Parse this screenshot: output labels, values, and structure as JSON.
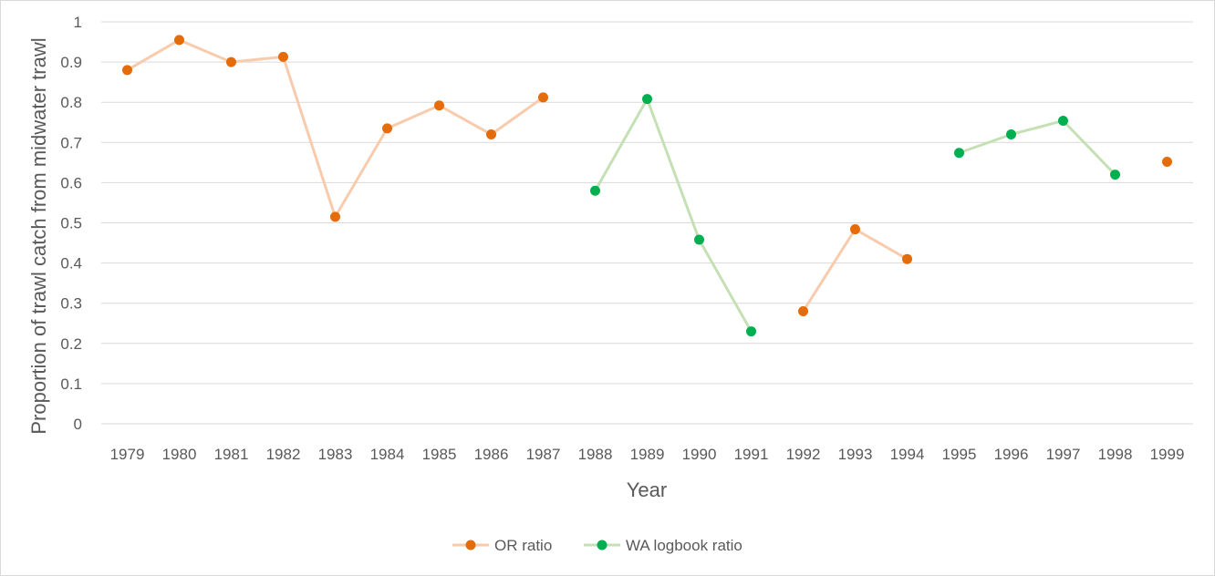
{
  "chart_data": {
    "type": "line",
    "title": "",
    "xlabel": "Year",
    "ylabel": "Proportion of trawl catch from midwater trawl",
    "ylim": [
      0,
      1
    ],
    "y_ticks": [
      "0",
      "0.1",
      "0.2",
      "0.3",
      "0.4",
      "0.5",
      "0.6",
      "0.7",
      "0.8",
      "0.9",
      "1"
    ],
    "categories": [
      "1979",
      "1980",
      "1981",
      "1982",
      "1983",
      "1984",
      "1985",
      "1986",
      "1987",
      "1988",
      "1989",
      "1990",
      "1991",
      "1992",
      "1993",
      "1994",
      "1995",
      "1996",
      "1997",
      "1998",
      "1999"
    ],
    "grid": "horizontal",
    "legend_position": "bottom",
    "series": [
      {
        "name": "OR ratio",
        "line_color": "#f8cbad",
        "marker_color": "#e46c0a",
        "values": [
          0.88,
          0.955,
          0.9,
          0.913,
          0.515,
          0.735,
          0.792,
          0.72,
          0.812,
          null,
          null,
          null,
          null,
          0.28,
          0.484,
          0.41,
          null,
          null,
          null,
          null,
          0.652
        ]
      },
      {
        "name": "WA logbook ratio",
        "line_color": "#c5e0b4",
        "marker_color": "#00b050",
        "values": [
          null,
          null,
          null,
          null,
          null,
          null,
          null,
          null,
          null,
          0.58,
          0.808,
          0.458,
          0.23,
          null,
          null,
          null,
          0.674,
          0.72,
          0.754,
          0.62,
          null
        ]
      }
    ]
  }
}
